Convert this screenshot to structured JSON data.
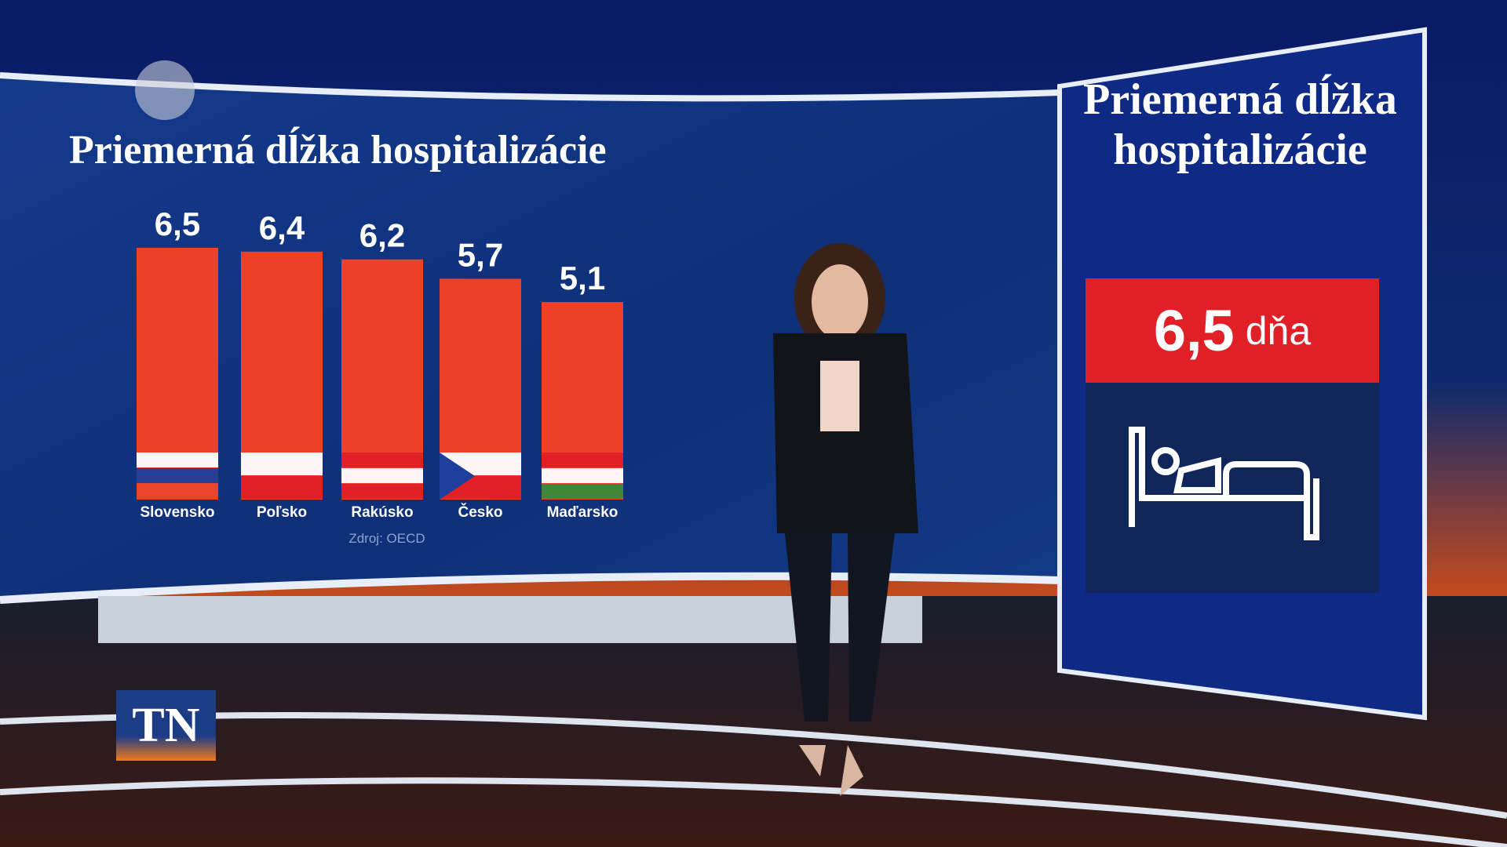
{
  "chart_data": {
    "type": "bar",
    "title": "Priemerná dĺžka hospitalizácie",
    "categories": [
      "Slovensko",
      "Poľsko",
      "Rakúsko",
      "Česko",
      "Maďarsko"
    ],
    "values": [
      6.5,
      6.4,
      6.2,
      5.7,
      5.1
    ],
    "value_labels": [
      "6,5",
      "6,4",
      "6,2",
      "5,7",
      "5,1"
    ],
    "color": "#ea4128",
    "source": "Zdroj: OECD"
  },
  "side_panel": {
    "title": "Priemerná dĺžka hospitalizácie",
    "value": "6,5",
    "unit": "dňa"
  },
  "logo": "TN"
}
